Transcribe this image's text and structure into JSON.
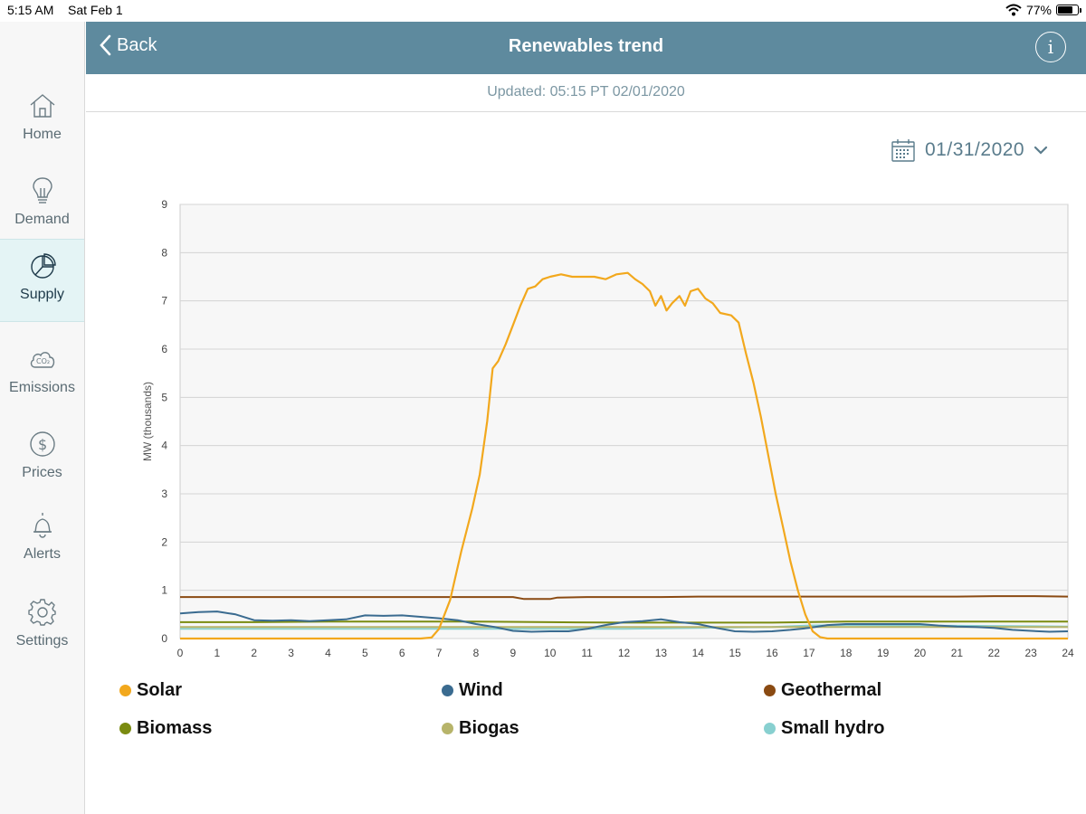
{
  "status_bar": {
    "time": "5:15 AM",
    "date": "Sat Feb 1",
    "battery": "77%"
  },
  "header": {
    "back_label": "Back",
    "title": "Renewables trend"
  },
  "updated_text": "Updated: 05:15 PT 02/01/2020",
  "date_picker": {
    "value": "01/31/2020"
  },
  "sidebar": {
    "items": [
      {
        "label": "Home",
        "icon": "home-icon"
      },
      {
        "label": "Demand",
        "icon": "lightbulb-icon"
      },
      {
        "label": "Supply",
        "icon": "pie-chart-icon",
        "active": true
      },
      {
        "label": "Emissions",
        "icon": "co2-cloud-icon"
      },
      {
        "label": "Prices",
        "icon": "dollar-icon"
      },
      {
        "label": "Alerts",
        "icon": "bell-icon"
      },
      {
        "label": "Settings",
        "icon": "gear-icon"
      }
    ]
  },
  "chart_data": {
    "type": "line",
    "ylabel": "MW (thousands)",
    "xlim": [
      0,
      24
    ],
    "ylim": [
      0,
      9
    ],
    "x_ticks": [
      0,
      1,
      2,
      3,
      4,
      5,
      6,
      7,
      8,
      9,
      10,
      11,
      12,
      13,
      14,
      15,
      16,
      17,
      18,
      19,
      20,
      21,
      22,
      23,
      24
    ],
    "y_ticks": [
      0,
      1,
      2,
      3,
      4,
      5,
      6,
      7,
      8,
      9
    ],
    "grid": true,
    "legend_position": "bottom",
    "series": [
      {
        "name": "Solar",
        "color": "#f2a81d",
        "points": [
          [
            0,
            0
          ],
          [
            6.5,
            0
          ],
          [
            6.8,
            0.02
          ],
          [
            7,
            0.2
          ],
          [
            7.3,
            0.8
          ],
          [
            7.6,
            1.8
          ],
          [
            7.9,
            2.7
          ],
          [
            8.1,
            3.4
          ],
          [
            8.3,
            4.5
          ],
          [
            8.45,
            5.6
          ],
          [
            8.6,
            5.75
          ],
          [
            8.8,
            6.1
          ],
          [
            9,
            6.5
          ],
          [
            9.2,
            6.9
          ],
          [
            9.4,
            7.25
          ],
          [
            9.6,
            7.3
          ],
          [
            9.8,
            7.45
          ],
          [
            10,
            7.5
          ],
          [
            10.3,
            7.55
          ],
          [
            10.6,
            7.5
          ],
          [
            10.9,
            7.5
          ],
          [
            11.2,
            7.5
          ],
          [
            11.5,
            7.45
          ],
          [
            11.8,
            7.55
          ],
          [
            12.1,
            7.58
          ],
          [
            12.3,
            7.45
          ],
          [
            12.5,
            7.35
          ],
          [
            12.7,
            7.2
          ],
          [
            12.85,
            6.9
          ],
          [
            13,
            7.1
          ],
          [
            13.15,
            6.8
          ],
          [
            13.3,
            6.95
          ],
          [
            13.5,
            7.1
          ],
          [
            13.65,
            6.9
          ],
          [
            13.8,
            7.2
          ],
          [
            14,
            7.25
          ],
          [
            14.2,
            7.05
          ],
          [
            14.4,
            6.95
          ],
          [
            14.6,
            6.75
          ],
          [
            14.9,
            6.7
          ],
          [
            15.1,
            6.55
          ],
          [
            15.3,
            5.9
          ],
          [
            15.5,
            5.3
          ],
          [
            15.7,
            4.6
          ],
          [
            15.9,
            3.8
          ],
          [
            16.1,
            3.0
          ],
          [
            16.3,
            2.3
          ],
          [
            16.5,
            1.6
          ],
          [
            16.7,
            1.0
          ],
          [
            16.9,
            0.5
          ],
          [
            17.1,
            0.15
          ],
          [
            17.3,
            0.03
          ],
          [
            17.5,
            0
          ],
          [
            24,
            0
          ]
        ]
      },
      {
        "name": "Wind",
        "color": "#3a6b90",
        "points": [
          [
            0,
            0.52
          ],
          [
            0.5,
            0.55
          ],
          [
            1,
            0.56
          ],
          [
            1.5,
            0.5
          ],
          [
            2,
            0.38
          ],
          [
            2.5,
            0.37
          ],
          [
            3,
            0.38
          ],
          [
            3.5,
            0.36
          ],
          [
            4,
            0.38
          ],
          [
            4.5,
            0.4
          ],
          [
            5,
            0.48
          ],
          [
            5.5,
            0.47
          ],
          [
            6,
            0.48
          ],
          [
            6.5,
            0.45
          ],
          [
            7,
            0.42
          ],
          [
            7.5,
            0.38
          ],
          [
            8,
            0.3
          ],
          [
            8.5,
            0.24
          ],
          [
            9,
            0.16
          ],
          [
            9.5,
            0.14
          ],
          [
            10,
            0.15
          ],
          [
            10.5,
            0.15
          ],
          [
            11,
            0.2
          ],
          [
            11.5,
            0.28
          ],
          [
            12,
            0.34
          ],
          [
            12.5,
            0.36
          ],
          [
            13,
            0.4
          ],
          [
            13.5,
            0.34
          ],
          [
            14,
            0.3
          ],
          [
            14.5,
            0.22
          ],
          [
            15,
            0.15
          ],
          [
            15.5,
            0.14
          ],
          [
            16,
            0.15
          ],
          [
            16.5,
            0.18
          ],
          [
            17,
            0.22
          ],
          [
            17.5,
            0.28
          ],
          [
            18,
            0.3
          ],
          [
            18.5,
            0.3
          ],
          [
            19,
            0.3
          ],
          [
            19.5,
            0.3
          ],
          [
            20,
            0.3
          ],
          [
            20.5,
            0.27
          ],
          [
            21,
            0.25
          ],
          [
            21.5,
            0.24
          ],
          [
            22,
            0.22
          ],
          [
            22.5,
            0.18
          ],
          [
            23,
            0.16
          ],
          [
            23.5,
            0.14
          ],
          [
            24,
            0.15
          ]
        ]
      },
      {
        "name": "Geothermal",
        "color": "#8a4a12",
        "points": [
          [
            0,
            0.86
          ],
          [
            1,
            0.86
          ],
          [
            2,
            0.86
          ],
          [
            3,
            0.86
          ],
          [
            4,
            0.86
          ],
          [
            5,
            0.86
          ],
          [
            6,
            0.86
          ],
          [
            7,
            0.86
          ],
          [
            8,
            0.86
          ],
          [
            9,
            0.86
          ],
          [
            9.3,
            0.82
          ],
          [
            10,
            0.82
          ],
          [
            10.2,
            0.85
          ],
          [
            11,
            0.86
          ],
          [
            12,
            0.86
          ],
          [
            13,
            0.86
          ],
          [
            14,
            0.87
          ],
          [
            15,
            0.87
          ],
          [
            16,
            0.87
          ],
          [
            17,
            0.87
          ],
          [
            18,
            0.87
          ],
          [
            19,
            0.87
          ],
          [
            20,
            0.87
          ],
          [
            21,
            0.87
          ],
          [
            22,
            0.88
          ],
          [
            23,
            0.88
          ],
          [
            24,
            0.87
          ]
        ]
      },
      {
        "name": "Biomass",
        "color": "#7a8b10",
        "points": [
          [
            0,
            0.34
          ],
          [
            2,
            0.34
          ],
          [
            4,
            0.35
          ],
          [
            6,
            0.35
          ],
          [
            8,
            0.35
          ],
          [
            10,
            0.34
          ],
          [
            12,
            0.33
          ],
          [
            14,
            0.33
          ],
          [
            16,
            0.33
          ],
          [
            18,
            0.35
          ],
          [
            20,
            0.35
          ],
          [
            22,
            0.35
          ],
          [
            24,
            0.35
          ]
        ]
      },
      {
        "name": "Biogas",
        "color": "#b7b46a",
        "points": [
          [
            0,
            0.24
          ],
          [
            2,
            0.24
          ],
          [
            4,
            0.24
          ],
          [
            6,
            0.24
          ],
          [
            8,
            0.24
          ],
          [
            10,
            0.24
          ],
          [
            12,
            0.24
          ],
          [
            14,
            0.24
          ],
          [
            16,
            0.24
          ],
          [
            18,
            0.24
          ],
          [
            20,
            0.24
          ],
          [
            22,
            0.24
          ],
          [
            24,
            0.24
          ]
        ]
      },
      {
        "name": "Small hydro",
        "color": "#88d0d0",
        "points": [
          [
            0,
            0.2
          ],
          [
            2,
            0.2
          ],
          [
            4,
            0.2
          ],
          [
            6,
            0.2
          ],
          [
            8,
            0.2
          ],
          [
            10,
            0.2
          ],
          [
            12,
            0.2
          ],
          [
            14,
            0.22
          ],
          [
            16,
            0.24
          ],
          [
            17,
            0.27
          ],
          [
            18,
            0.28
          ],
          [
            20,
            0.27
          ],
          [
            22,
            0.26
          ],
          [
            24,
            0.25
          ]
        ]
      }
    ]
  }
}
